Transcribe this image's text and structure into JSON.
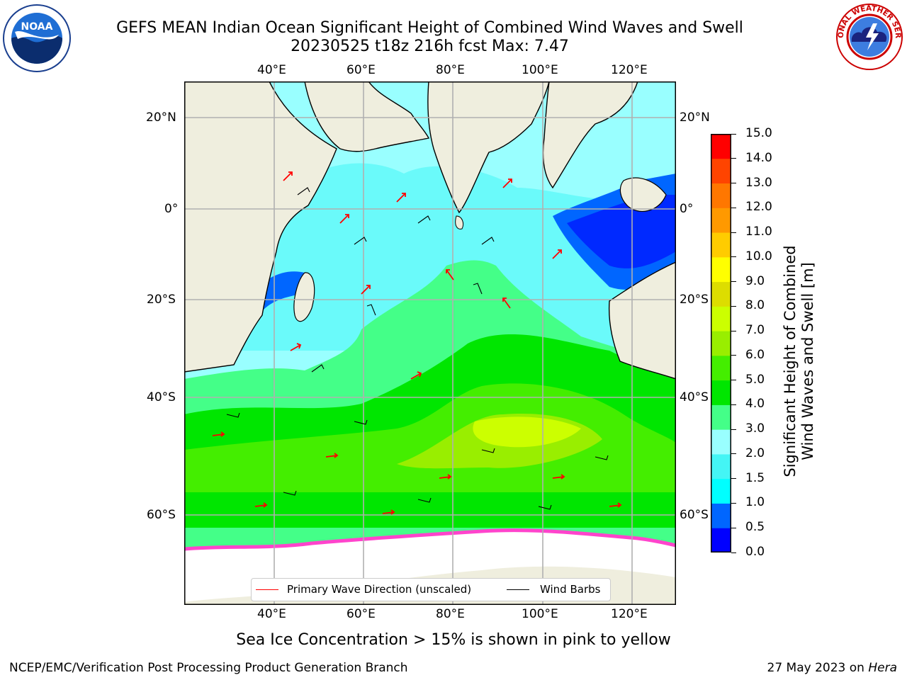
{
  "header": {
    "title_line1": "GEFS MEAN Indian Ocean Significant Height of Combined Wind Waves and Swell",
    "title_line2": "20230525 t18z 216h fcst   Max: 7.47"
  },
  "logos": {
    "left": "noaa-logo",
    "right_text": "NATIONAL WEATHER SERVICE",
    "left_text": "NOAA"
  },
  "map": {
    "lon_labels": [
      "40°E",
      "60°E",
      "80°E",
      "100°E",
      "120°E"
    ],
    "lat_labels": [
      "20°N",
      "0°",
      "20°S",
      "40°S",
      "60°S"
    ],
    "colors": {
      "land": "#efeede",
      "ice": "#ffffff",
      "grid": "#b0b0b0",
      "arrow": "#ff0000",
      "barb": "#000000"
    }
  },
  "colorbar": {
    "ticks": [
      "0.0",
      "0.5",
      "1.0",
      "1.5",
      "2.0",
      "3.0",
      "4.0",
      "5.0",
      "6.0",
      "7.0",
      "8.0",
      "9.0",
      "10.0",
      "11.0",
      "12.0",
      "13.0",
      "14.0",
      "15.0"
    ],
    "colors": [
      "#0000ff",
      "#0066ff",
      "#00ffff",
      "#44f5f5",
      "#99ffff",
      "#44ff88",
      "#00e600",
      "#44ee00",
      "#99ee00",
      "#ccff00",
      "#dddd00",
      "#ffff00",
      "#ffcc00",
      "#ff9900",
      "#ff7700",
      "#ff4400",
      "#ff0000"
    ],
    "title_line1": "Significant Height of Combined",
    "title_line2": "Wind Waves and Swell [m]"
  },
  "legend": {
    "wave_label": "Primary Wave Direction (unscaled)",
    "barb_label": "Wind Barbs"
  },
  "notes": {
    "ice_note": "Sea Ice Concentration > 15% is shown in pink to yellow"
  },
  "footer": {
    "left": "NCEP/EMC/Verification Post Processing Product Generation Branch",
    "right_date": "27 May 2023 on ",
    "right_host": "Hera"
  }
}
